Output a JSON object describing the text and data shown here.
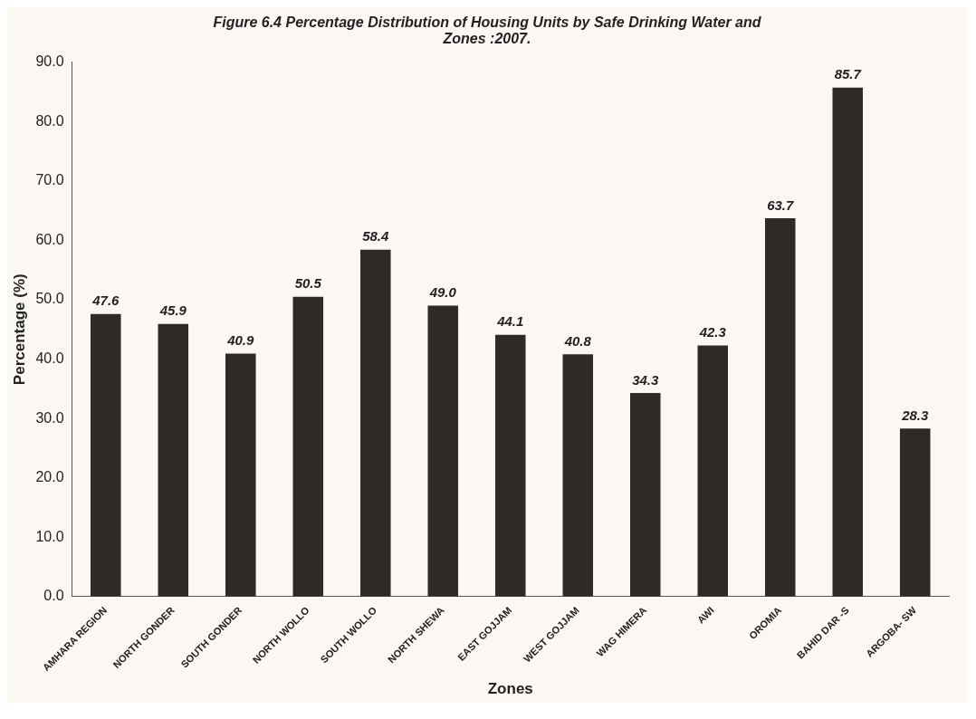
{
  "chart_data": {
    "type": "bar",
    "title": "Figure 6.4 Percentage Distribution of Housing Units by Safe Drinking Water and Zones :2007.",
    "xlabel": "Zones",
    "ylabel": "Percentage (%)",
    "categories": [
      "AMHARA REGION",
      "NORTH GONDER",
      "SOUTH GONDER",
      "NORTH WOLLO",
      "SOUTH WOLLO",
      "NORTH SHEWA",
      "EAST GOJJAM",
      "WEST GOJJAM",
      "WAG HIMERA",
      "AWI",
      "OROMIA",
      "BAHID DAR -S",
      "ARGOBA- SW"
    ],
    "values": [
      47.6,
      45.9,
      40.9,
      50.5,
      58.4,
      49.0,
      44.1,
      40.8,
      34.3,
      42.3,
      63.7,
      85.7,
      28.3
    ],
    "value_labels": [
      "47.6",
      "45.9",
      "40.9",
      "50.5",
      "58.4",
      "49.0",
      "44.1",
      "40.8",
      "34.3",
      "42.3",
      "63.7",
      "85.7",
      "28.3"
    ],
    "color": "#2e2a28",
    "ylim": [
      0,
      90
    ],
    "yticks": [
      {
        "value": 0,
        "label": "0.0"
      },
      {
        "value": 10,
        "label": "10.0"
      },
      {
        "value": 20,
        "label": "20.0"
      },
      {
        "value": 30,
        "label": "30.0"
      },
      {
        "value": 40,
        "label": "40.0"
      },
      {
        "value": 50,
        "label": "50.0"
      },
      {
        "value": 60,
        "label": "60.0"
      },
      {
        "value": 70,
        "label": "70.0"
      },
      {
        "value": 80,
        "label": "80.0"
      },
      {
        "value": 90,
        "label": "90.0"
      }
    ],
    "grid": false,
    "legend": false
  }
}
